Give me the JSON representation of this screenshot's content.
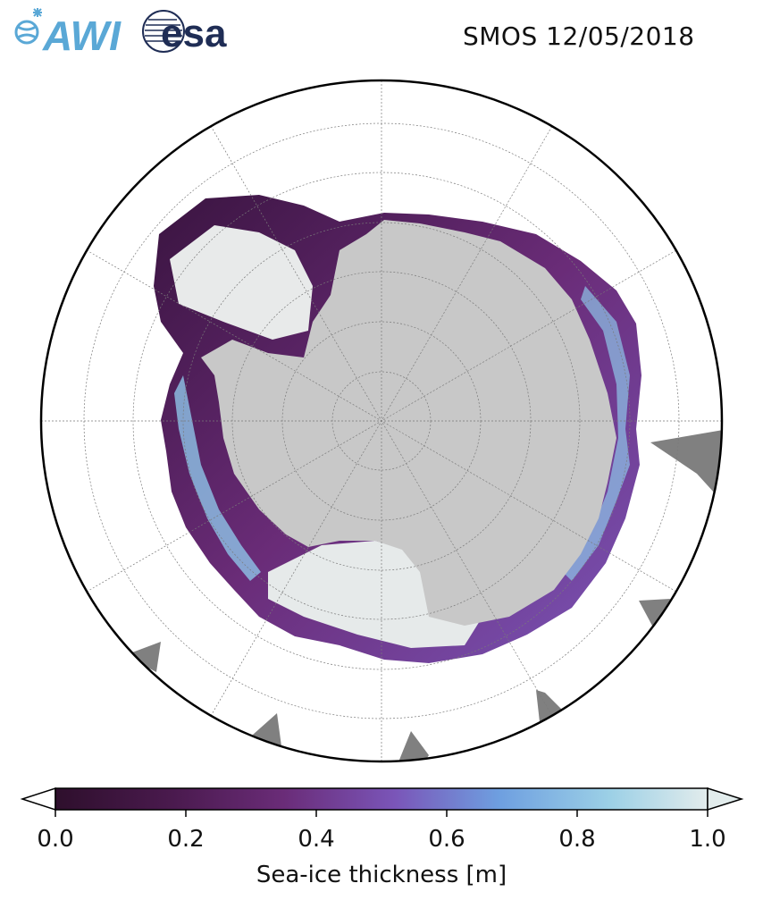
{
  "header": {
    "title": "SMOS 12/05/2018",
    "logos": [
      {
        "name": "AWI",
        "text": "AWI",
        "color": "#5aa8d6"
      },
      {
        "name": "esa",
        "text": "esa",
        "color": "#1f2d55"
      }
    ]
  },
  "map": {
    "projection": "south-polar-stereographic",
    "land_color": "#c8c8c8",
    "other_land_color": "#808080",
    "ocean_color": "#ffffff",
    "graticule": true
  },
  "colorbar": {
    "label": "Sea-ice thickness [m]",
    "ticks": [
      "0.0",
      "0.2",
      "0.4",
      "0.6",
      "0.8",
      "1.0"
    ],
    "range": [
      0.0,
      1.0
    ],
    "extend": "both",
    "colormap": [
      "#2e0f2c",
      "#4a1a4e",
      "#6a2c78",
      "#7a55b8",
      "#6e9fe0",
      "#9cd0e6",
      "#e2ecec"
    ]
  }
}
